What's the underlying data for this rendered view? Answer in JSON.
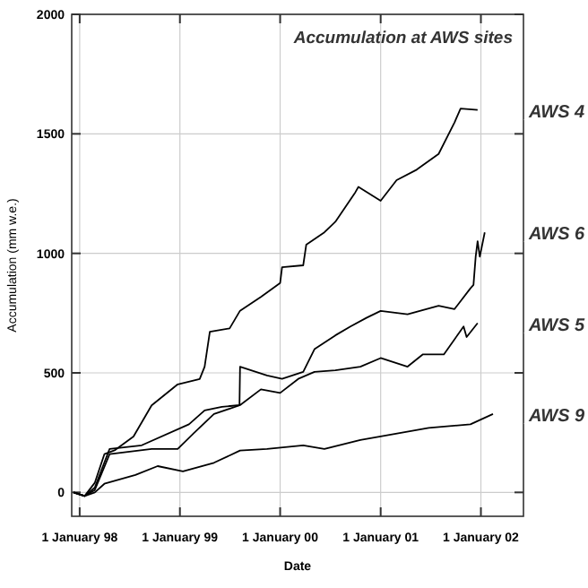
{
  "chart_data": {
    "type": "line",
    "title": "Accumulation at AWS sites",
    "xlabel": "Date",
    "ylabel": "Accumulation (mm w.e.)",
    "xlim": [
      "1997-12-03",
      "2002-06-05"
    ],
    "xticks": [
      {
        "value": "1998-01-01",
        "label": "1 January 98"
      },
      {
        "value": "1999-01-01",
        "label": "1 January 99"
      },
      {
        "value": "2000-01-01",
        "label": "1 January 00"
      },
      {
        "value": "2001-01-01",
        "label": "1 January 01"
      },
      {
        "value": "2002-01-01",
        "label": "1 January 02"
      }
    ],
    "ylim": [
      -100,
      2000
    ],
    "yticks": [
      0,
      500,
      1000,
      1500,
      2000
    ],
    "grid": true,
    "legend": false,
    "series": [
      {
        "name": "AWS 4",
        "color": "#000000",
        "x": [
          "1997-12-10",
          "1998-01-19",
          "1998-02-25",
          "1998-04-01",
          "1998-05-08",
          "1998-07-16",
          "1998-09-20",
          "1998-12-24",
          "1999-03-14",
          "1999-04-01",
          "1999-04-20",
          "1999-07-01",
          "1999-08-08",
          "1999-10-23",
          "2000-01-01",
          "2000-01-08",
          "2000-03-25",
          "2000-04-05",
          "2000-06-10",
          "2000-07-20",
          "2000-10-01",
          "2000-10-12",
          "2001-01-01",
          "2001-02-28",
          "2001-05-12",
          "2001-07-31",
          "2001-09-27",
          "2001-10-19",
          "2001-12-20"
        ],
        "values": [
          0,
          -15,
          40,
          160,
          176,
          234,
          364,
          452,
          474,
          526,
          672,
          686,
          760,
          818,
          876,
          942,
          950,
          1036,
          1088,
          1132,
          1256,
          1278,
          1220,
          1306,
          1350,
          1416,
          1548,
          1606,
          1600
        ]
      },
      {
        "name": "AWS 6",
        "color": "#000000",
        "x": [
          "1997-12-10",
          "1998-01-19",
          "1998-02-25",
          "1998-04-20",
          "1998-08-15",
          "1999-02-03",
          "1999-04-01",
          "1999-06-03",
          "1999-08-06",
          "1999-08-08",
          "1999-11-14",
          "2000-01-08",
          "2000-03-25",
          "2000-05-05",
          "2000-07-20",
          "2000-09-13",
          "2000-11-10",
          "2001-01-01",
          "2001-04-09",
          "2001-07-31",
          "2001-09-27",
          "2001-11-24",
          "2001-12-05",
          "2001-12-13",
          "2001-12-20",
          "2001-12-28",
          "2002-01-15"
        ],
        "values": [
          0,
          -15,
          20,
          182,
          197,
          285,
          343,
          358,
          365,
          526,
          489,
          475,
          504,
          599,
          657,
          694,
          730,
          759,
          745,
          781,
          767,
          854,
          868,
          986,
          1051,
          986,
          1088
        ]
      },
      {
        "name": "AWS 5",
        "color": "#000000",
        "x": [
          "1997-12-10",
          "1998-01-19",
          "1998-02-25",
          "1998-04-20",
          "1998-09-20",
          "1998-12-24",
          "1999-02-21",
          "1999-05-05",
          "1999-08-08",
          "1999-10-23",
          "2000-01-01",
          "2000-03-07",
          "2000-05-05",
          "2000-07-20",
          "2000-10-19",
          "2001-01-01",
          "2001-04-09",
          "2001-06-03",
          "2001-08-19",
          "2001-10-30",
          "2001-11-10",
          "2001-12-20"
        ],
        "values": [
          0,
          -15,
          10,
          160,
          182,
          182,
          248,
          328,
          365,
          431,
          416,
          475,
          504,
          511,
          526,
          562,
          526,
          577,
          577,
          694,
          650,
          708
        ]
      },
      {
        "name": "AWS 9",
        "color": "#000000",
        "x": [
          "1997-12-10",
          "1998-01-19",
          "1998-02-25",
          "1998-04-01",
          "1998-07-23",
          "1998-10-12",
          "1999-01-12",
          "1999-05-05",
          "1999-08-08",
          "1999-11-14",
          "2000-03-25",
          "2000-06-10",
          "2000-10-19",
          "2001-01-01",
          "2001-06-25",
          "2001-11-24",
          "2002-02-14"
        ],
        "values": [
          0,
          -15,
          0,
          36,
          73,
          110,
          88,
          124,
          175,
          182,
          197,
          182,
          219,
          234,
          270,
          285,
          328
        ]
      }
    ]
  }
}
